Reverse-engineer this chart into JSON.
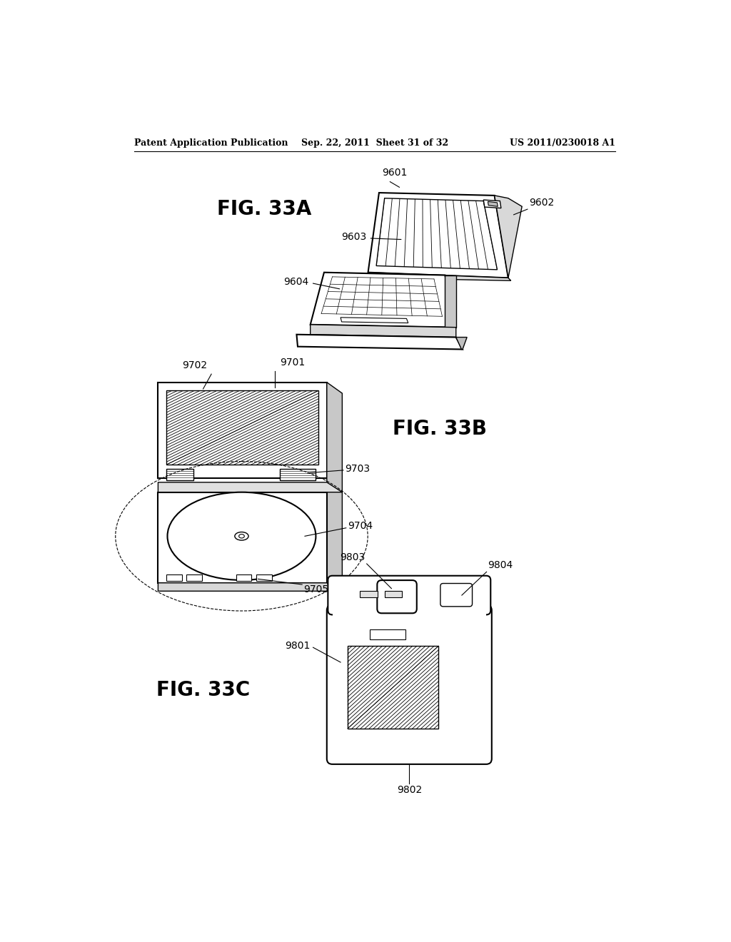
{
  "bg_color": "#ffffff",
  "header_left": "Patent Application Publication",
  "header_center": "Sep. 22, 2011  Sheet 31 of 32",
  "header_right": "US 2011/0230018 A1",
  "fig33a_label": "FIG. 33A",
  "fig33b_label": "FIG. 33B",
  "fig33c_label": "FIG. 33C"
}
